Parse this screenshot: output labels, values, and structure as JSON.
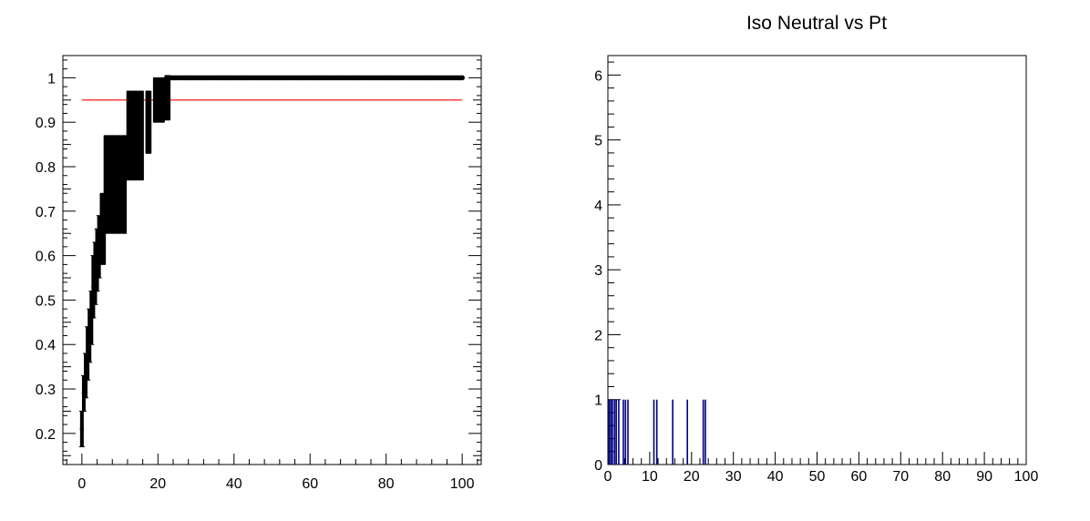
{
  "chart_data": [
    {
      "type": "scatter",
      "title": "",
      "xlabel": "",
      "ylabel": "",
      "xlim": [
        -5,
        105
      ],
      "ylim": [
        0.13,
        1.05
      ],
      "x_ticks": [
        0,
        20,
        40,
        60,
        80,
        100
      ],
      "y_ticks": [
        0.2,
        0.3,
        0.4,
        0.5,
        0.6,
        0.7,
        0.8,
        0.9,
        1
      ],
      "reference_line": {
        "y": 0.95,
        "x_range": [
          0,
          100
        ],
        "color": "#ff0000"
      },
      "points": [
        {
          "x": 0.0,
          "y": 0.21,
          "err": 0.04
        },
        {
          "x": 0.5,
          "y": 0.29,
          "err": 0.04
        },
        {
          "x": 1.0,
          "y": 0.33,
          "err": 0.05
        },
        {
          "x": 1.5,
          "y": 0.38,
          "err": 0.06
        },
        {
          "x": 2.0,
          "y": 0.42,
          "err": 0.06
        },
        {
          "x": 2.5,
          "y": 0.46,
          "err": 0.06
        },
        {
          "x": 3.0,
          "y": 0.53,
          "err": 0.07
        },
        {
          "x": 3.5,
          "y": 0.56,
          "err": 0.07
        },
        {
          "x": 4.0,
          "y": 0.59,
          "err": 0.07
        },
        {
          "x": 4.5,
          "y": 0.62,
          "err": 0.07
        },
        {
          "x": 5.5,
          "y": 0.66,
          "err": 0.08
        },
        {
          "x": 6.5,
          "y": 0.76,
          "err": 0.11
        },
        {
          "x": 8.0,
          "y": 0.76,
          "err": 0.11
        },
        {
          "x": 9.5,
          "y": 0.76,
          "err": 0.11
        },
        {
          "x": 11.0,
          "y": 0.76,
          "err": 0.11
        },
        {
          "x": 12.5,
          "y": 0.87,
          "err": 0.1
        },
        {
          "x": 14.0,
          "y": 0.87,
          "err": 0.1
        },
        {
          "x": 15.5,
          "y": 0.87,
          "err": 0.1
        },
        {
          "x": 17.5,
          "y": 0.9,
          "err": 0.07
        },
        {
          "x": 19.5,
          "y": 0.95,
          "err": 0.05
        },
        {
          "x": 21.0,
          "y": 0.95,
          "err": 0.05
        },
        {
          "x": 22.5,
          "y": 0.955,
          "err": 0.05
        }
      ],
      "plateau": {
        "x_start": 23,
        "x_end": 100,
        "step": 0.5,
        "y": 1.0
      },
      "marker_color": "#000000"
    },
    {
      "type": "bar",
      "title": "Iso Neutral vs Pt",
      "xlabel": "",
      "ylabel": "",
      "xlim": [
        0,
        100
      ],
      "ylim": [
        0,
        6.3
      ],
      "x_ticks": [
        0,
        10,
        20,
        30,
        40,
        50,
        60,
        70,
        80,
        90,
        100
      ],
      "y_ticks": [
        0,
        1,
        2,
        3,
        4,
        5,
        6
      ],
      "bar_color": "#000080",
      "bars": [
        {
          "x": 0.3,
          "value": 1
        },
        {
          "x": 0.7,
          "value": 1
        },
        {
          "x": 1.1,
          "value": 1
        },
        {
          "x": 1.6,
          "value": 1
        },
        {
          "x": 2.0,
          "value": 1
        },
        {
          "x": 2.6,
          "value": 1
        },
        {
          "x": 3.7,
          "value": 1
        },
        {
          "x": 4.2,
          "value": 1
        },
        {
          "x": 4.8,
          "value": 1
        },
        {
          "x": 11.0,
          "value": 1
        },
        {
          "x": 11.7,
          "value": 1
        },
        {
          "x": 15.5,
          "value": 1
        },
        {
          "x": 19.0,
          "value": 1
        },
        {
          "x": 22.8,
          "value": 1
        },
        {
          "x": 23.3,
          "value": 1
        }
      ]
    }
  ]
}
